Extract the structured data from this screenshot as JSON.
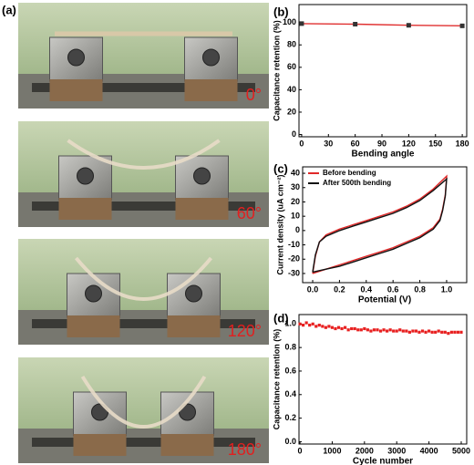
{
  "photos": {
    "label": "(a)",
    "angles": [
      "0°",
      "60°",
      "120°",
      "180°"
    ]
  },
  "chart_data": [
    {
      "type": "line",
      "panel": "(b)",
      "x_label": "Bending angle",
      "y_label": "Capacitance retention (%)",
      "x": [
        0,
        60,
        120,
        180
      ],
      "series": [
        {
          "name": null,
          "color": "#e03030",
          "marker_color": "#333333",
          "values": [
            99,
            98.5,
            97.5,
            97
          ]
        }
      ],
      "xlim": [
        -3,
        185
      ],
      "xticks": [
        0,
        30,
        60,
        90,
        120,
        150,
        180
      ],
      "ylim": [
        -2,
        116
      ],
      "yticks": [
        0,
        20,
        40,
        60,
        80,
        100
      ]
    },
    {
      "type": "line",
      "panel": "(c)",
      "x_label": "Potential (V)",
      "y_label": "Current density (uA cm⁻²)",
      "legend": "upper left",
      "series": [
        {
          "name": "Before bending",
          "color": "#e02828",
          "x": [
            0,
            0.02,
            0.05,
            0.1,
            0.2,
            0.3,
            0.4,
            0.5,
            0.6,
            0.7,
            0.8,
            0.9,
            1.0,
            0.99,
            0.97,
            0.95,
            0.9,
            0.8,
            0.7,
            0.6,
            0.5,
            0.4,
            0.3,
            0.2,
            0.1,
            0.0
          ],
          "values": [
            -30,
            -18,
            -8,
            -3,
            1,
            4,
            7,
            10,
            13,
            17,
            22,
            29,
            38,
            25,
            15,
            8,
            2,
            -4,
            -8,
            -12,
            -15,
            -18,
            -21,
            -24,
            -27,
            -30
          ]
        },
        {
          "name": "After 500th bending",
          "color": "#111111",
          "x": [
            0,
            0.02,
            0.05,
            0.1,
            0.2,
            0.3,
            0.4,
            0.5,
            0.6,
            0.7,
            0.8,
            0.9,
            1.0,
            0.99,
            0.97,
            0.95,
            0.9,
            0.8,
            0.7,
            0.6,
            0.5,
            0.4,
            0.3,
            0.2,
            0.1,
            0.0
          ],
          "values": [
            -29,
            -17,
            -8,
            -4,
            0,
            3,
            6,
            9,
            12,
            16,
            21,
            28,
            36,
            24,
            14,
            7,
            1,
            -5,
            -9,
            -13,
            -16,
            -19,
            -22,
            -25,
            -27,
            -29
          ]
        }
      ],
      "xlim": [
        -0.075,
        1.15
      ],
      "xticks": [
        {
          "value": 0,
          "label": "0.0"
        },
        {
          "value": 0.2,
          "label": "0.2"
        },
        {
          "value": 0.4,
          "label": "0.4"
        },
        {
          "value": 0.6,
          "label": "0.6"
        },
        {
          "value": 0.8,
          "label": "0.8"
        },
        {
          "value": 1,
          "label": "1.0"
        }
      ],
      "ylim": [
        -36.4,
        44.5
      ],
      "yticks": [
        -30,
        -20,
        -10,
        0,
        10,
        20,
        30,
        40
      ]
    },
    {
      "type": "scatter",
      "panel": "(d)",
      "x_label": "Cycle number",
      "y_label": "Capacitance retention (%)",
      "x": [
        0,
        100,
        200,
        300,
        400,
        500,
        600,
        700,
        800,
        900,
        1000,
        1100,
        1200,
        1300,
        1400,
        1500,
        1600,
        1700,
        1800,
        1900,
        2000,
        2100,
        2200,
        2300,
        2400,
        2500,
        2600,
        2700,
        2800,
        2900,
        3000,
        3100,
        3200,
        3300,
        3400,
        3500,
        3600,
        3700,
        3800,
        3900,
        4000,
        4100,
        4200,
        4300,
        4400,
        4500,
        4600,
        4700,
        4800,
        4900,
        5000
      ],
      "series": [
        {
          "name": null,
          "color": "#e82020",
          "values": [
            1.0,
            0.99,
            1.01,
            0.99,
            1.0,
            0.98,
            0.99,
            0.98,
            0.97,
            0.98,
            0.97,
            0.96,
            0.97,
            0.96,
            0.97,
            0.95,
            0.96,
            0.96,
            0.95,
            0.95,
            0.96,
            0.95,
            0.94,
            0.95,
            0.95,
            0.94,
            0.95,
            0.94,
            0.95,
            0.94,
            0.94,
            0.95,
            0.94,
            0.94,
            0.93,
            0.94,
            0.94,
            0.93,
            0.94,
            0.93,
            0.94,
            0.93,
            0.93,
            0.94,
            0.93,
            0.93,
            0.92,
            0.93,
            0.93,
            0.93,
            0.93
          ]
        }
      ],
      "xlim": [
        -30,
        5170
      ],
      "xticks": [
        0,
        1000,
        2000,
        3000,
        4000,
        5000
      ],
      "ylim": [
        -0.02,
        1.08
      ],
      "yticks": [
        {
          "value": 0,
          "label": "0.0"
        },
        {
          "value": 0.2,
          "label": "0.2"
        },
        {
          "value": 0.4,
          "label": "0.4"
        },
        {
          "value": 0.6,
          "label": "0.6"
        },
        {
          "value": 0.8,
          "label": "0.8"
        },
        {
          "value": 1,
          "label": "1.0"
        }
      ]
    }
  ]
}
